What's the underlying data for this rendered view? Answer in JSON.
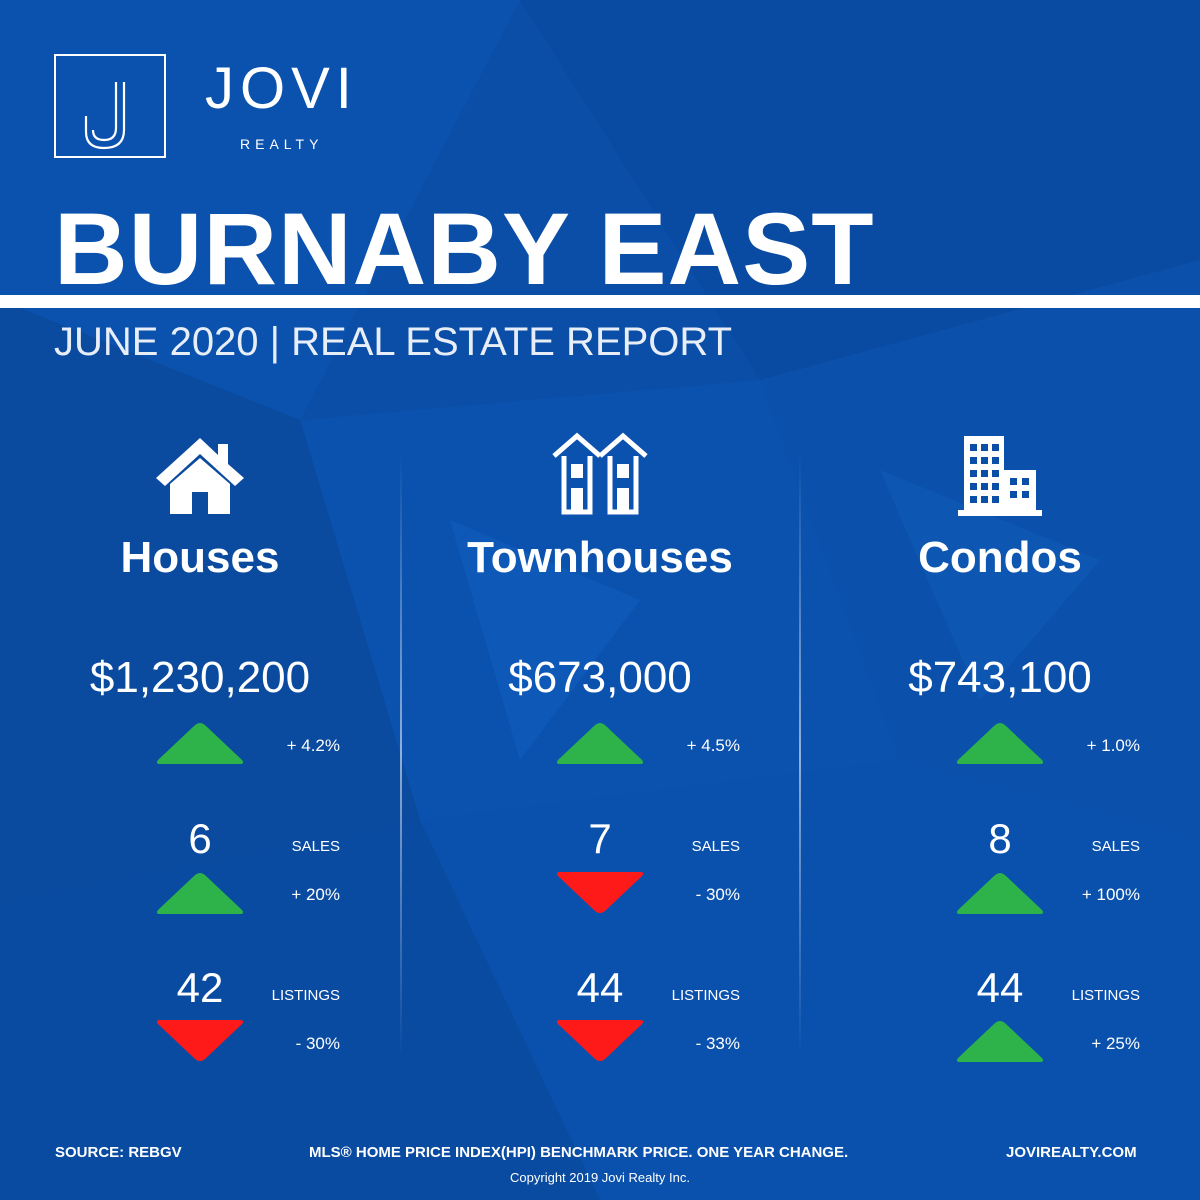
{
  "brand": {
    "name": "JOVI",
    "tagline": "REALTY",
    "logo_letter": "J"
  },
  "title": "BURNABY EAST",
  "subtitle": "JUNE 2020 | REAL ESTATE REPORT",
  "colors": {
    "background": "#0a4ea7",
    "up": "#2db34a",
    "down": "#ff1a1a",
    "text": "#ffffff"
  },
  "columns": [
    {
      "icon": "house-icon",
      "type": "Houses",
      "price": "$1,230,200",
      "price_change": {
        "direction": "up",
        "text": "+ 4.2%"
      },
      "sales": {
        "value": "6",
        "label": "SALES",
        "direction": "up",
        "change": "+ 20%"
      },
      "listings": {
        "value": "42",
        "label": "LISTINGS",
        "direction": "down",
        "change": "- 30%"
      }
    },
    {
      "icon": "townhouse-icon",
      "type": "Townhouses",
      "price": "$673,000",
      "price_change": {
        "direction": "up",
        "text": "+ 4.5%"
      },
      "sales": {
        "value": "7",
        "label": "SALES",
        "direction": "down",
        "change": "- 30%"
      },
      "listings": {
        "value": "44",
        "label": "LISTINGS",
        "direction": "down",
        "change": "- 33%"
      }
    },
    {
      "icon": "condo-building-icon",
      "type": "Condos",
      "price": "$743,100",
      "price_change": {
        "direction": "up",
        "text": "+ 1.0%"
      },
      "sales": {
        "value": "8",
        "label": "SALES",
        "direction": "up",
        "change": "+ 100%"
      },
      "listings": {
        "value": "44",
        "label": "LISTINGS",
        "direction": "up",
        "change": "+ 25%"
      }
    }
  ],
  "footer": {
    "source": "SOURCE:  REBGV",
    "note": "MLS® HOME PRICE INDEX(HPI) BENCHMARK PRICE. ONE YEAR CHANGE.",
    "website": "JOVIREALTY.COM",
    "copyright": "Copyright 2019 Jovi Realty Inc."
  }
}
